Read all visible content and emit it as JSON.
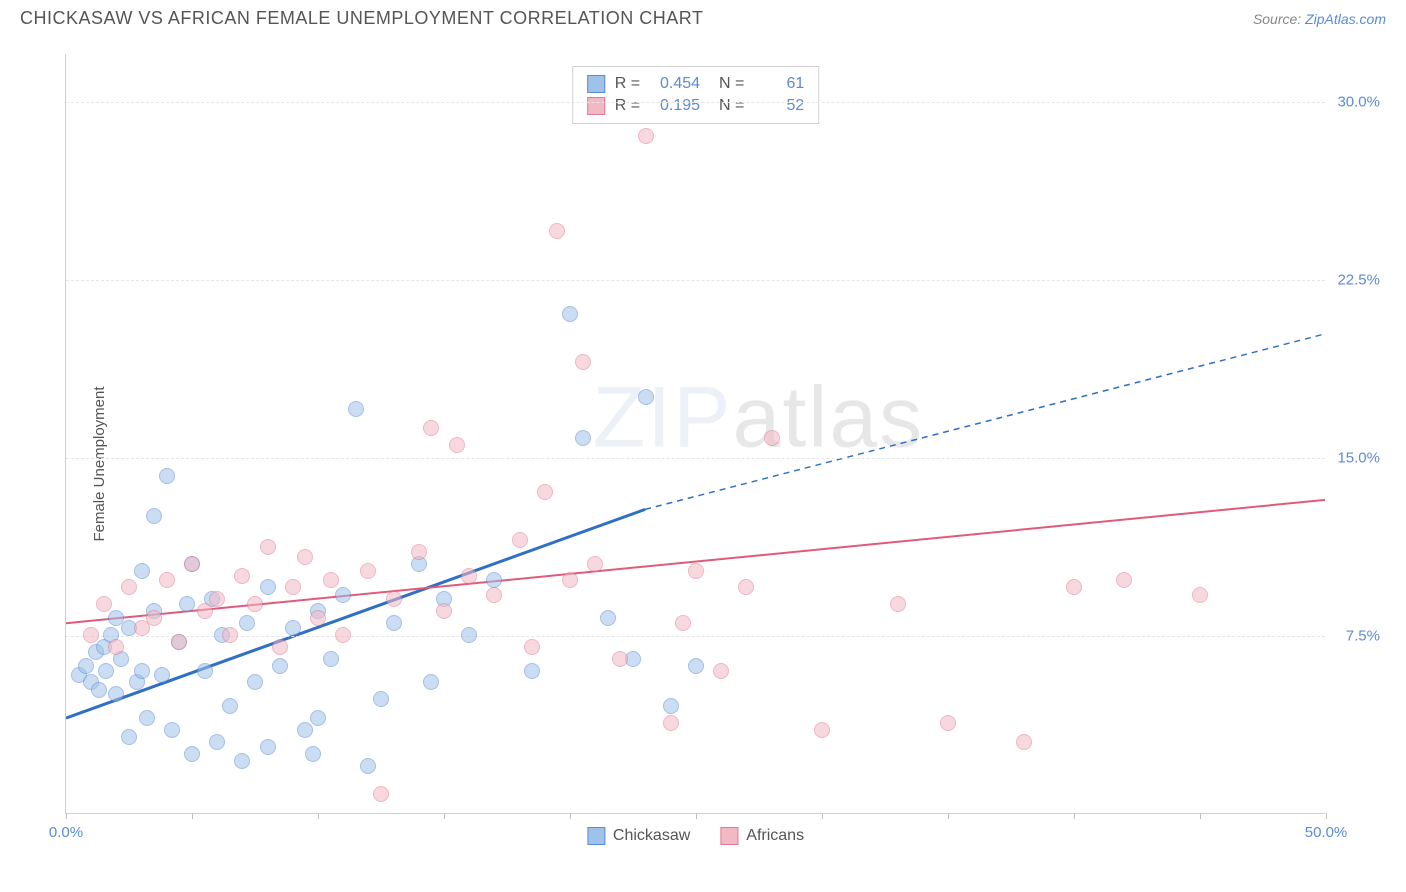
{
  "title": "CHICKASAW VS AFRICAN FEMALE UNEMPLOYMENT CORRELATION CHART",
  "source_prefix": "Source: ",
  "source_name": "ZipAtlas.com",
  "ylabel": "Female Unemployment",
  "watermark_zip": "ZIP",
  "watermark_atlas": "atlas",
  "chart": {
    "type": "scatter",
    "xlim": [
      0,
      50
    ],
    "ylim": [
      0,
      32
    ],
    "xticks": [
      0,
      5,
      10,
      15,
      20,
      25,
      30,
      35,
      40,
      45,
      50
    ],
    "xtick_labels": {
      "0": "0.0%",
      "50": "50.0%"
    },
    "yticks": [
      7.5,
      15.0,
      22.5,
      30.0
    ],
    "ytick_labels": [
      "7.5%",
      "15.0%",
      "22.5%",
      "30.0%"
    ],
    "grid_color": "#e5e5e5",
    "background_color": "#ffffff",
    "marker_radius": 8,
    "marker_opacity": 0.55,
    "series": [
      {
        "name": "Chickasaw",
        "label": "Chickasaw",
        "color_fill": "#9fc2e8",
        "color_stroke": "#5b8bd4",
        "R": "0.454",
        "N": "61",
        "trend": {
          "x1": 0,
          "y1": 4.0,
          "x2": 23,
          "y2": 12.8,
          "x2_ext": 50,
          "y2_ext": 20.2,
          "stroke": "#2f6fc4",
          "width": 3
        },
        "points": [
          [
            0.5,
            5.8
          ],
          [
            0.8,
            6.2
          ],
          [
            1.0,
            5.5
          ],
          [
            1.2,
            6.8
          ],
          [
            1.3,
            5.2
          ],
          [
            1.5,
            7.0
          ],
          [
            1.6,
            6.0
          ],
          [
            1.8,
            7.5
          ],
          [
            2.0,
            5.0
          ],
          [
            2.0,
            8.2
          ],
          [
            2.2,
            6.5
          ],
          [
            2.5,
            7.8
          ],
          [
            2.5,
            3.2
          ],
          [
            2.8,
            5.5
          ],
          [
            3.0,
            10.2
          ],
          [
            3.0,
            6.0
          ],
          [
            3.2,
            4.0
          ],
          [
            3.5,
            8.5
          ],
          [
            3.5,
            12.5
          ],
          [
            3.8,
            5.8
          ],
          [
            4.0,
            14.2
          ],
          [
            4.2,
            3.5
          ],
          [
            4.5,
            7.2
          ],
          [
            4.8,
            8.8
          ],
          [
            5.0,
            2.5
          ],
          [
            5.0,
            10.5
          ],
          [
            5.5,
            6.0
          ],
          [
            5.8,
            9.0
          ],
          [
            6.0,
            3.0
          ],
          [
            6.2,
            7.5
          ],
          [
            6.5,
            4.5
          ],
          [
            7.0,
            2.2
          ],
          [
            7.2,
            8.0
          ],
          [
            7.5,
            5.5
          ],
          [
            8.0,
            2.8
          ],
          [
            8.0,
            9.5
          ],
          [
            8.5,
            6.2
          ],
          [
            9.0,
            7.8
          ],
          [
            9.5,
            3.5
          ],
          [
            9.8,
            2.5
          ],
          [
            10.0,
            8.5
          ],
          [
            10.0,
            4.0
          ],
          [
            10.5,
            6.5
          ],
          [
            11.0,
            9.2
          ],
          [
            11.5,
            17.0
          ],
          [
            12.0,
            2.0
          ],
          [
            12.5,
            4.8
          ],
          [
            13.0,
            8.0
          ],
          [
            14.0,
            10.5
          ],
          [
            14.5,
            5.5
          ],
          [
            15.0,
            9.0
          ],
          [
            16.0,
            7.5
          ],
          [
            17.0,
            9.8
          ],
          [
            18.5,
            6.0
          ],
          [
            20.0,
            21.0
          ],
          [
            20.5,
            15.8
          ],
          [
            21.5,
            8.2
          ],
          [
            22.5,
            6.5
          ],
          [
            23.0,
            17.5
          ],
          [
            24.0,
            4.5
          ],
          [
            25.0,
            6.2
          ]
        ]
      },
      {
        "name": "Africans",
        "label": "Africans",
        "color_fill": "#f2b9c4",
        "color_stroke": "#e27a93",
        "R": "0.195",
        "N": "52",
        "trend": {
          "x1": 0,
          "y1": 8.0,
          "x2": 50,
          "y2": 13.2,
          "stroke": "#e05a7c",
          "width": 2
        },
        "points": [
          [
            1.0,
            7.5
          ],
          [
            1.5,
            8.8
          ],
          [
            2.0,
            7.0
          ],
          [
            2.5,
            9.5
          ],
          [
            3.0,
            7.8
          ],
          [
            3.5,
            8.2
          ],
          [
            4.0,
            9.8
          ],
          [
            4.5,
            7.2
          ],
          [
            5.0,
            10.5
          ],
          [
            5.5,
            8.5
          ],
          [
            6.0,
            9.0
          ],
          [
            6.5,
            7.5
          ],
          [
            7.0,
            10.0
          ],
          [
            7.5,
            8.8
          ],
          [
            8.0,
            11.2
          ],
          [
            8.5,
            7.0
          ],
          [
            9.0,
            9.5
          ],
          [
            9.5,
            10.8
          ],
          [
            10.0,
            8.2
          ],
          [
            10.5,
            9.8
          ],
          [
            11.0,
            7.5
          ],
          [
            12.0,
            10.2
          ],
          [
            12.5,
            0.8
          ],
          [
            13.0,
            9.0
          ],
          [
            14.0,
            11.0
          ],
          [
            14.5,
            16.2
          ],
          [
            15.0,
            8.5
          ],
          [
            15.5,
            15.5
          ],
          [
            16.0,
            10.0
          ],
          [
            17.0,
            9.2
          ],
          [
            18.0,
            11.5
          ],
          [
            18.5,
            7.0
          ],
          [
            19.0,
            13.5
          ],
          [
            19.5,
            24.5
          ],
          [
            20.0,
            9.8
          ],
          [
            20.5,
            19.0
          ],
          [
            21.0,
            10.5
          ],
          [
            22.0,
            6.5
          ],
          [
            23.0,
            28.5
          ],
          [
            24.0,
            3.8
          ],
          [
            24.5,
            8.0
          ],
          [
            25.0,
            10.2
          ],
          [
            26.0,
            6.0
          ],
          [
            27.0,
            9.5
          ],
          [
            28.0,
            15.8
          ],
          [
            30.0,
            3.5
          ],
          [
            33.0,
            8.8
          ],
          [
            35.0,
            3.8
          ],
          [
            38.0,
            3.0
          ],
          [
            40.0,
            9.5
          ],
          [
            42.0,
            9.8
          ],
          [
            45.0,
            9.2
          ]
        ]
      }
    ]
  }
}
